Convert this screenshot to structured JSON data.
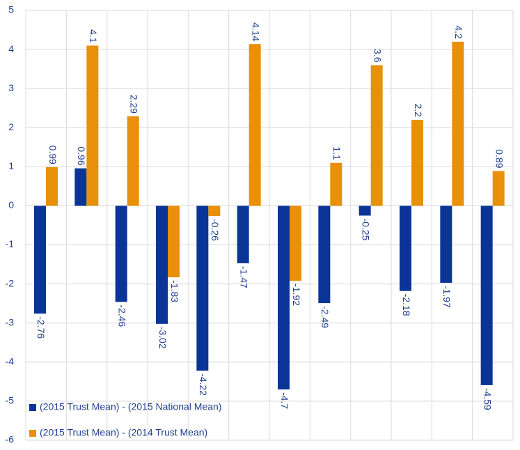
{
  "chart_data": {
    "type": "bar",
    "series": [
      {
        "name": "(2015 Trust Mean) - (2015 National Mean)",
        "color": "#0a3597",
        "values": [
          -2.76,
          0.96,
          -2.46,
          -3.02,
          -4.22,
          -1.47,
          -4.7,
          -2.49,
          -0.25,
          -2.18,
          -1.97,
          -4.59
        ]
      },
      {
        "name": "(2015 Trust Mean) - (2014 Trust Mean)",
        "color": "#e8900a",
        "values": [
          0.99,
          4.1,
          2.29,
          -1.83,
          -0.26,
          4.14,
          -1.92,
          1.1,
          3.6,
          2.2,
          4.2,
          0.89
        ]
      }
    ],
    "ylim": [
      -6,
      5
    ],
    "yticks": [
      -6,
      -5,
      -4,
      -3,
      -2,
      -1,
      0,
      1,
      2,
      3,
      4,
      5
    ],
    "grid": true,
    "legend": "lower left"
  }
}
